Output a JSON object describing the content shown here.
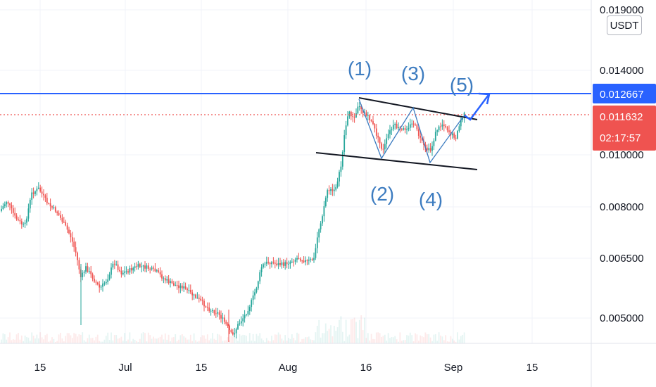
{
  "chart_data": {
    "type": "candlestick",
    "quote_unit": "USDT",
    "x_tick_labels": [
      "15",
      "Jul",
      "15",
      "Aug",
      "16",
      "Sep",
      "15"
    ],
    "y_tick_labels": [
      "0.019000",
      "0.014000",
      "0.010000",
      "0.008000",
      "0.006500",
      "0.005000"
    ],
    "y_ticks": [
      0.019,
      0.014,
      0.01,
      0.008,
      0.0065,
      0.005
    ],
    "ylim": [
      0.0045,
      0.0195
    ],
    "y_scale": "log",
    "grid": true,
    "resistance_level": {
      "label": "0.012667",
      "value": 0.012667,
      "color": "#2962ff"
    },
    "last_price": {
      "label": "0.011632",
      "value": 0.011632,
      "countdown": "02:17:57",
      "color": "#ef5350"
    },
    "wave_labels": [
      "(1)",
      "(2)",
      "(3)",
      "(4)",
      "(5)"
    ],
    "colors": {
      "up": "#26a69a",
      "down": "#ef5350",
      "wave_path": "#3d7cc0",
      "trendline": "#131722"
    }
  }
}
